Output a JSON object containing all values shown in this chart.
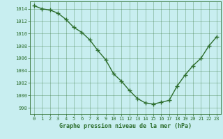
{
  "x": [
    0,
    1,
    2,
    3,
    4,
    5,
    6,
    7,
    8,
    9,
    10,
    11,
    12,
    13,
    14,
    15,
    16,
    17,
    18,
    19,
    20,
    21,
    22,
    23
  ],
  "y": [
    1014.5,
    1014.0,
    1013.8,
    1013.3,
    1012.3,
    1011.0,
    1010.2,
    1009.0,
    1007.3,
    1005.8,
    1003.5,
    1002.3,
    1000.8,
    999.5,
    998.8,
    998.6,
    998.9,
    999.2,
    1001.5,
    1003.3,
    1004.8,
    1006.0,
    1008.0,
    1009.5
  ],
  "line_color": "#2d6e2d",
  "marker": "+",
  "marker_size": 4,
  "line_width": 1.0,
  "bg_color": "#c8eef0",
  "grid_color": "#2d6e2d",
  "tick_color": "#2d6e2d",
  "label_color": "#2d6e2d",
  "xlabel": "Graphe pression niveau de la mer (hPa)",
  "xlabel_fontsize": 6,
  "xlabel_fontweight": "bold",
  "ytick_labels": [
    998,
    1000,
    1002,
    1004,
    1006,
    1008,
    1010,
    1012,
    1014
  ],
  "ylim": [
    997.0,
    1015.2
  ],
  "xlim": [
    -0.5,
    23.5
  ],
  "xtick_labels": [
    "0",
    "1",
    "2",
    "3",
    "4",
    "5",
    "6",
    "7",
    "8",
    "9",
    "10",
    "11",
    "12",
    "13",
    "14",
    "15",
    "16",
    "17",
    "18",
    "19",
    "20",
    "21",
    "22",
    "23"
  ],
  "tick_fontsize": 5,
  "font_family": "monospace",
  "marker_edge_width": 1.0
}
